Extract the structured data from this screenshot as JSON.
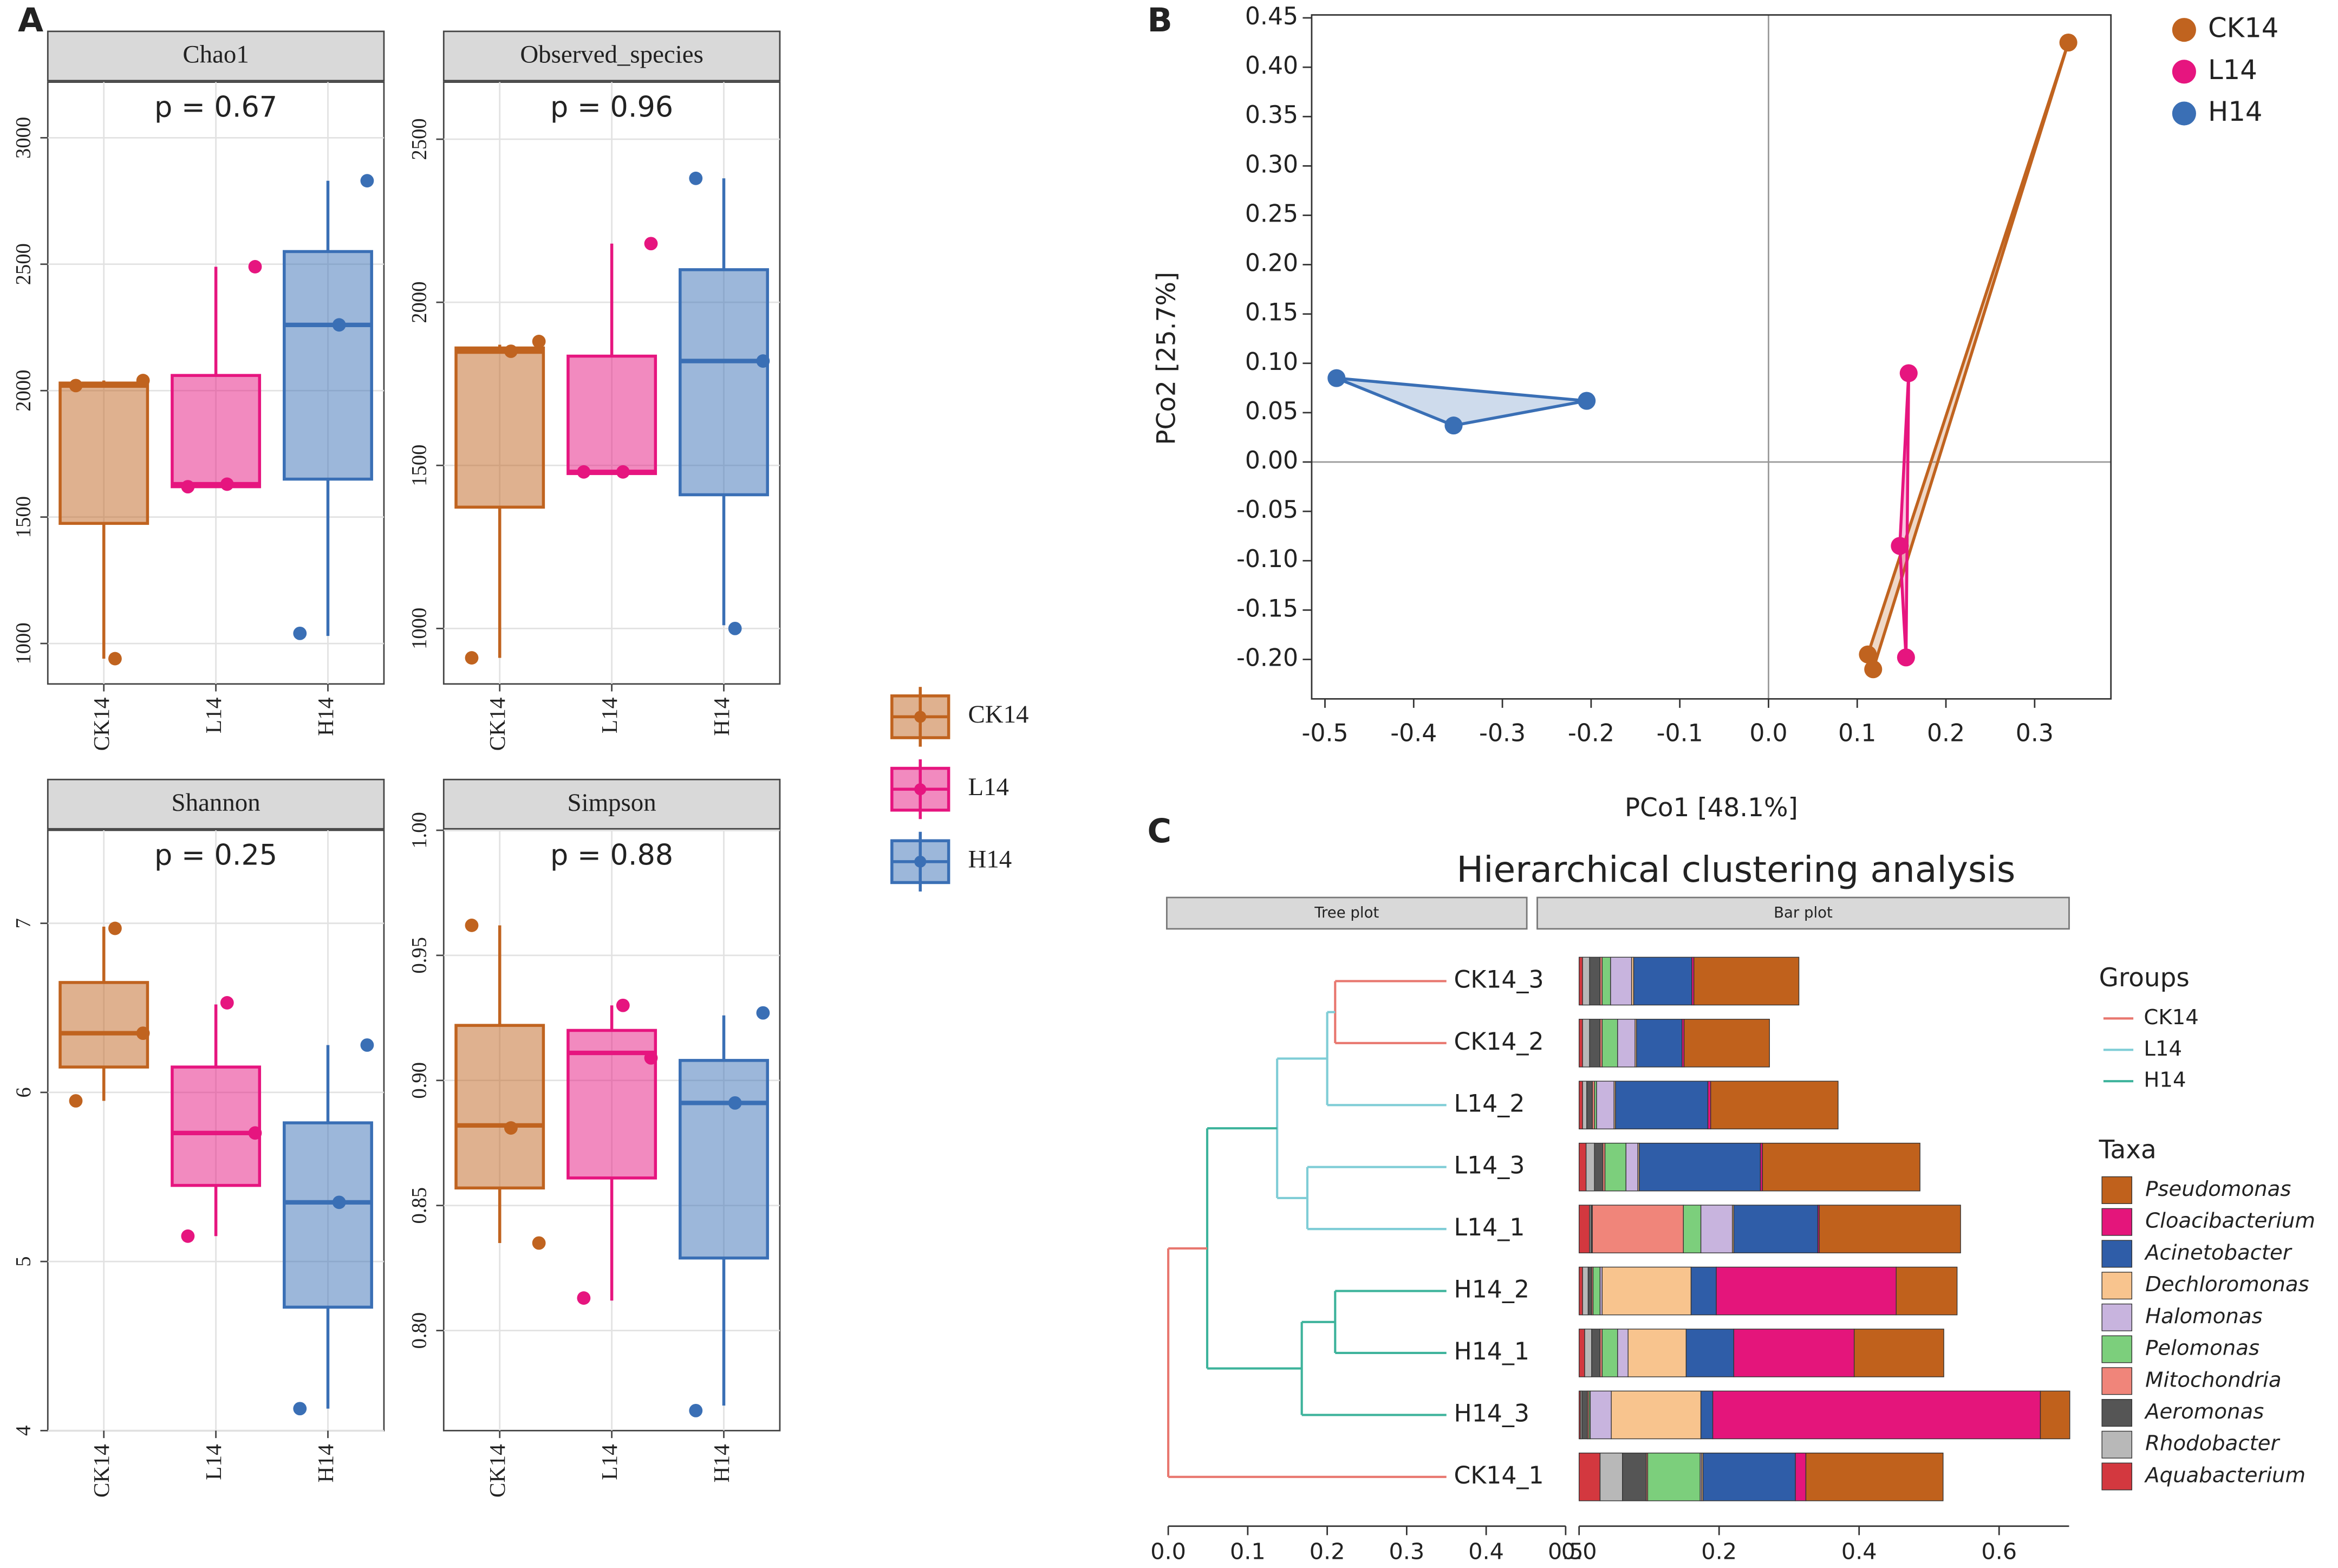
{
  "panel_labels": [
    "A",
    "B",
    "C"
  ],
  "boxplot_legend": [
    {
      "name": "CK14",
      "color": "#c0631f"
    },
    {
      "name": "L14",
      "color": "#e6157f"
    },
    {
      "name": "H14",
      "color": "#3a6fb5"
    }
  ],
  "chart_data": [
    {
      "type": "box",
      "title": "Chao1",
      "annotation": "p = 0.67",
      "categories": [
        "CK14",
        "L14",
        "H14"
      ],
      "ylim": [
        840,
        3220
      ],
      "yticks": [
        1000,
        1500,
        2000,
        2500,
        3000
      ],
      "grid": true,
      "boxes": [
        {
          "q1": 1475,
          "median": 2020,
          "q3": 2030,
          "whisker_low": 940,
          "whisker_high": 2040,
          "points": [
            2020,
            940,
            2040
          ]
        },
        {
          "q1": 1620,
          "median": 1630,
          "q3": 2060,
          "whisker_low": 1620,
          "whisker_high": 2490,
          "points": [
            1620,
            1630,
            2490
          ]
        },
        {
          "q1": 1650,
          "median": 2260,
          "q3": 2550,
          "whisker_low": 1030,
          "whisker_high": 2830,
          "points": [
            1040,
            2260,
            2830
          ]
        }
      ]
    },
    {
      "type": "box",
      "title": "Observed_species",
      "annotation": "p = 0.96",
      "categories": [
        "CK14",
        "L14",
        "H14"
      ],
      "ylim": [
        830,
        2675
      ],
      "yticks": [
        1000,
        1500,
        2000,
        2500
      ],
      "grid": true,
      "boxes": [
        {
          "q1": 1372,
          "median": 1849,
          "q3": 1860,
          "whisker_low": 910,
          "whisker_high": 1870,
          "points": [
            910,
            1850,
            1880
          ]
        },
        {
          "q1": 1475,
          "median": 1480,
          "q3": 1835,
          "whisker_low": 1475,
          "whisker_high": 2180,
          "points": [
            1480,
            1480,
            2180
          ]
        },
        {
          "q1": 1410,
          "median": 1820,
          "q3": 2100,
          "whisker_low": 1010,
          "whisker_high": 2380,
          "points": [
            2380,
            1000,
            1820
          ]
        }
      ]
    },
    {
      "type": "box",
      "title": "Shannon",
      "annotation": "p = 0.25",
      "categories": [
        "CK14",
        "L14",
        "H14"
      ],
      "ylim": [
        4,
        7.55
      ],
      "yticks": [
        4,
        5,
        6,
        7
      ],
      "grid": true,
      "boxes": [
        {
          "q1": 6.15,
          "median": 6.35,
          "q3": 6.65,
          "whisker_low": 5.95,
          "whisker_high": 6.98,
          "points": [
            5.95,
            6.97,
            6.35
          ]
        },
        {
          "q1": 5.45,
          "median": 5.76,
          "q3": 6.15,
          "whisker_low": 5.15,
          "whisker_high": 6.52,
          "points": [
            5.15,
            6.53,
            5.76
          ]
        },
        {
          "q1": 4.73,
          "median": 5.35,
          "q3": 5.82,
          "whisker_low": 4.13,
          "whisker_high": 6.28,
          "points": [
            4.13,
            5.35,
            6.28
          ]
        }
      ]
    },
    {
      "type": "box",
      "title": "Simpson",
      "annotation": "p = 0.88",
      "categories": [
        "CK14",
        "L14",
        "H14"
      ],
      "ylim": [
        0.76,
        1.0
      ],
      "yticks": [
        {
          "value": 0.8,
          "label": "0.80"
        },
        0.85,
        {
          "value": 0.9,
          "label": "0.90"
        },
        0.95,
        {
          "value": 1.0,
          "label": "1.00"
        }
      ],
      "grid": true,
      "boxes": [
        {
          "q1": 0.857,
          "median": 0.882,
          "q3": 0.922,
          "whisker_low": 0.835,
          "whisker_high": 0.962,
          "points": [
            0.962,
            0.881,
            0.835
          ]
        },
        {
          "q1": 0.861,
          "median": 0.911,
          "q3": 0.92,
          "whisker_low": 0.812,
          "whisker_high": 0.93,
          "points": [
            0.813,
            0.93,
            0.909
          ]
        },
        {
          "q1": 0.829,
          "median": 0.891,
          "q3": 0.908,
          "whisker_low": 0.77,
          "whisker_high": 0.926,
          "points": [
            0.768,
            0.891,
            0.927
          ]
        }
      ]
    },
    {
      "type": "scatter",
      "xlabel": "PCo1 [48.1%]",
      "ylabel": "PCo2 [25.7%]",
      "xlim": [
        -0.515,
        0.386
      ],
      "ylim": [
        -0.24,
        0.453
      ],
      "xticks": [
        -0.5,
        -0.4,
        -0.3,
        -0.2,
        -0.1,
        {
          "value": 0,
          "label": "0.0"
        },
        0.1,
        0.2,
        0.3
      ],
      "yticks": [
        0.45,
        {
          "value": 0.4,
          "label": "0.40"
        },
        0.35,
        {
          "value": 0.3,
          "label": "0.30"
        },
        0.25,
        {
          "value": 0.2,
          "label": "0.20"
        },
        0.15,
        {
          "value": 0.1,
          "label": "0.10"
        },
        0.05,
        {
          "value": 0,
          "label": "0.00"
        },
        -0.05,
        {
          "value": -0.1,
          "label": "-0.10"
        },
        -0.15,
        {
          "value": -0.2,
          "label": "-0.20"
        }
      ],
      "legend": "top-right",
      "series": [
        {
          "name": "CK14",
          "color": "#c0631f",
          "x": [
            0.338,
            0.112,
            0.118
          ],
          "values": [
            0.425,
            -0.195,
            -0.21
          ]
        },
        {
          "name": "L14",
          "color": "#e6157f",
          "x": [
            0.158,
            0.148,
            0.155
          ],
          "values": [
            0.09,
            -0.085,
            -0.198
          ]
        },
        {
          "name": "H14",
          "color": "#3a6fb5",
          "x": [
            -0.487,
            -0.355,
            -0.205
          ],
          "values": [
            0.085,
            0.037,
            0.062
          ]
        }
      ]
    },
    {
      "type": "cluster",
      "title": "Hierarchical clustering analysis",
      "strips": [
        "Tree plot",
        "Bar plot"
      ],
      "xlim": [
        0,
        0.5
      ],
      "xticks": [
        {
          "value": 0,
          "label": "0.0"
        },
        0.1,
        0.2,
        0.3,
        0.4,
        0.5
      ],
      "bar_xlim": [
        0,
        0.7
      ],
      "bar_xticks": [
        {
          "value": 0,
          "label": "0.0"
        },
        0.2,
        0.4,
        0.6
      ],
      "tree": {
        "x": 0,
        "color": "#e8776f",
        "children": [
          {
            "x": 0.049,
            "color": "#3db39b",
            "children": [
              {
                "x": 0.137,
                "color": "#7fcdd6",
                "children": [
                  {
                    "x": 0.2,
                    "color": "#7fcdd6",
                    "children": [
                      {
                        "x": 0.21,
                        "color": "#e8776f",
                        "children": [
                          {
                            "label": "CK14_3",
                            "x": 0.35
                          },
                          {
                            "label": "CK14_2",
                            "x": 0.35
                          }
                        ]
                      },
                      {
                        "label": "L14_2",
                        "x": 0.35
                      }
                    ]
                  },
                  {
                    "x": 0.175,
                    "color": "#7fcdd6",
                    "children": [
                      {
                        "label": "L14_3",
                        "x": 0.35
                      },
                      {
                        "label": "L14_1",
                        "x": 0.35
                      }
                    ]
                  }
                ]
              },
              {
                "x": 0.168,
                "color": "#3db39b",
                "children": [
                  {
                    "x": 0.21,
                    "color": "#3db39b",
                    "children": [
                      {
                        "label": "H14_2",
                        "x": 0.35
                      },
                      {
                        "label": "H14_1",
                        "x": 0.35
                      }
                    ]
                  },
                  {
                    "label": "H14_3",
                    "x": 0.35
                  }
                ]
              }
            ]
          },
          {
            "label": "CK14_1",
            "x": 0.35
          }
        ]
      },
      "groups_title": "Groups",
      "groups": [
        {
          "name": "CK14",
          "color": "#e8776f"
        },
        {
          "name": "L14",
          "color": "#7fcdd6"
        },
        {
          "name": "H14",
          "color": "#3db39b"
        }
      ],
      "taxa_title": "Taxa",
      "series": [
        {
          "name": "Pseudomonas",
          "color": "#c0611c",
          "values": [
            0.15,
            0.122,
            0.182,
            0.225,
            0.202,
            0.087,
            0.128,
            0.042,
            0.196
          ]
        },
        {
          "name": "Cloacibacterium",
          "color": "#e4157b",
          "values": [
            0.003,
            0.003,
            0.004,
            0.003,
            0.002,
            0.257,
            0.172,
            0.468,
            0.015
          ]
        },
        {
          "name": "Acinetobacter",
          "color": "#2f5da8",
          "values": [
            0.083,
            0.065,
            0.132,
            0.173,
            0.12,
            0.036,
            0.068,
            0.017,
            0.132
          ]
        },
        {
          "name": "Dechloromonas",
          "color": "#f8c48e",
          "values": [
            0.003,
            0.002,
            0.002,
            0.002,
            0.002,
            0.127,
            0.083,
            0.128,
            0.002
          ]
        },
        {
          "name": "Halomonas",
          "color": "#c8b4de",
          "values": [
            0.03,
            0.025,
            0.025,
            0.017,
            0.045,
            0.003,
            0.015,
            0.03,
            0.002
          ]
        },
        {
          "name": "Pelomonas",
          "color": "#7ccf7c",
          "values": [
            0.012,
            0.022,
            0.003,
            0.03,
            0.025,
            0.01,
            0.022,
            0.002,
            0.075
          ]
        },
        {
          "name": "Mitochondria",
          "color": "#f0857a",
          "values": [
            0.003,
            0.003,
            0.003,
            0.003,
            0.13,
            0.002,
            0.003,
            0.002,
            0.002
          ]
        },
        {
          "name": "Aeromonas",
          "color": "#555555",
          "values": [
            0.015,
            0.015,
            0.008,
            0.012,
            0.002,
            0.005,
            0.012,
            0.008,
            0.034
          ]
        },
        {
          "name": "Rhodobacter",
          "color": "#b8b8b8",
          "values": [
            0.01,
            0.01,
            0.006,
            0.012,
            0.002,
            0.008,
            0.01,
            0.002,
            0.032
          ]
        },
        {
          "name": "Aquabacterium",
          "color": "#d3383f",
          "values": [
            0.005,
            0.005,
            0.005,
            0.01,
            0.015,
            0.005,
            0.008,
            0.002,
            0.03
          ]
        }
      ]
    }
  ]
}
